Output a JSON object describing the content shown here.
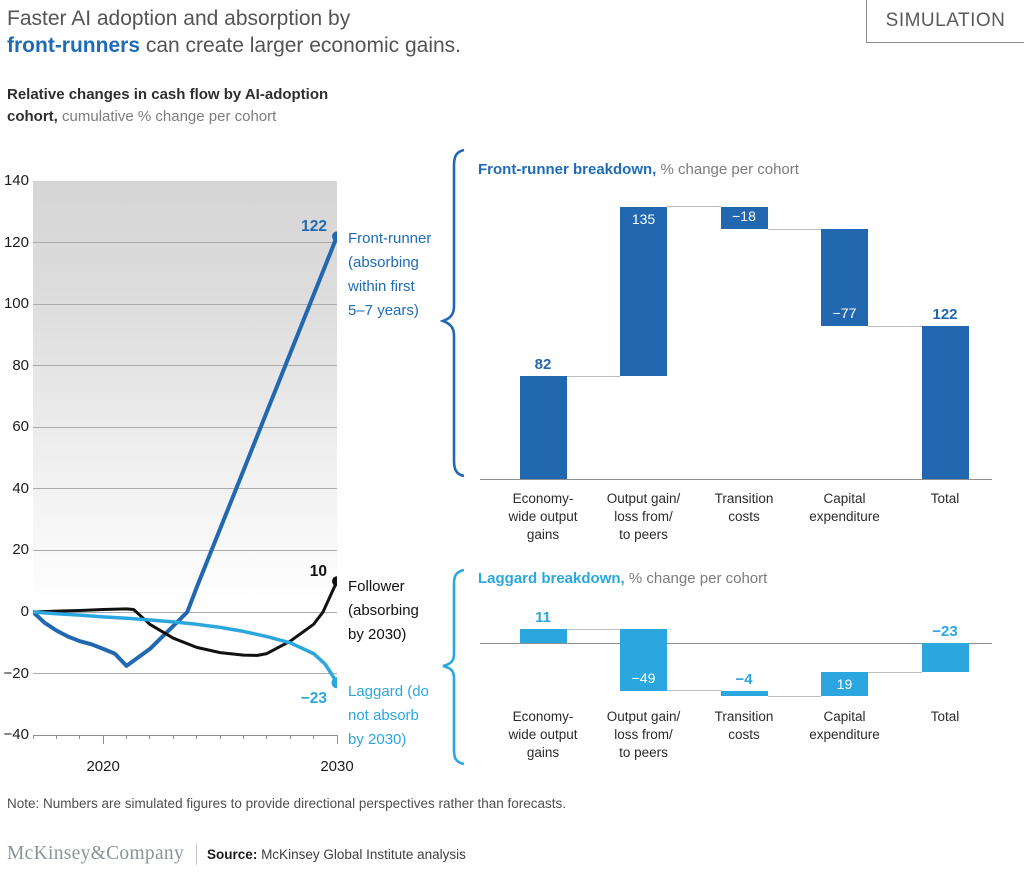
{
  "header": {
    "title_line1": "Faster AI adoption and absorption by",
    "title_highlight": "front-runners",
    "title_rest": " can create larger economic gains.",
    "badge": "SIMULATION"
  },
  "subtitle": {
    "bold": "Relative changes in cash flow by AI-adoption cohort,",
    "rest": " cumulative % change per cohort"
  },
  "colors": {
    "dark_blue": "#2268B1",
    "light_blue": "#2CA6DF",
    "black": "#111111",
    "accent_text_blue": "#1E6BB8",
    "gray_text": "#545454"
  },
  "chart_data": [
    {
      "type": "line",
      "title": "Relative changes in cash flow by AI-adoption cohort, cumulative % change per cohort",
      "x_range": [
        2017,
        2030
      ],
      "ylim": [
        -40,
        140
      ],
      "grid": true,
      "x_ticks": [
        {
          "value": 2020,
          "label": "2020"
        },
        {
          "value": 2030,
          "label": "2030"
        }
      ],
      "y_ticks": [
        {
          "value": 140,
          "label": "140"
        },
        {
          "value": 120,
          "label": "120"
        },
        {
          "value": 100,
          "label": "100"
        },
        {
          "value": 80,
          "label": "80"
        },
        {
          "value": 60,
          "label": "60"
        },
        {
          "value": 40,
          "label": "40"
        },
        {
          "value": 20,
          "label": "20"
        },
        {
          "value": 0,
          "label": "0"
        },
        {
          "value": -20,
          "label": "−20"
        },
        {
          "value": -40,
          "label": "−40"
        }
      ],
      "series": [
        {
          "name": "front-runner",
          "label": "Front-runner\n(absorbing\nwithin first\n5–7 years)",
          "end_value": 122,
          "end_value_label": "122",
          "color": "#2268B1",
          "points": [
            [
              2017,
              0
            ],
            [
              2017.5,
              -3.5
            ],
            [
              2018,
              -6
            ],
            [
              2018.5,
              -8
            ],
            [
              2019,
              -9.5
            ],
            [
              2019.5,
              -10.5
            ],
            [
              2020,
              -12
            ],
            [
              2020.5,
              -13.5
            ],
            [
              2021,
              -17.5
            ],
            [
              2022,
              -12
            ],
            [
              2023,
              -4.5
            ],
            [
              2023.6,
              0
            ],
            [
              2024,
              8
            ],
            [
              2025,
              27
            ],
            [
              2026,
              46
            ],
            [
              2027,
              65
            ],
            [
              2028,
              84
            ],
            [
              2029,
              103
            ],
            [
              2030,
              122
            ]
          ]
        },
        {
          "name": "follower",
          "label": "Follower\n(absorbing\nby 2030)",
          "end_value": 10,
          "end_value_label": "10",
          "color": "#111111",
          "points": [
            [
              2017,
              0
            ],
            [
              2018,
              0.3
            ],
            [
              2019,
              0.5
            ],
            [
              2020,
              0.8
            ],
            [
              2021,
              1
            ],
            [
              2021.3,
              0.8
            ],
            [
              2022,
              -4
            ],
            [
              2023,
              -8.5
            ],
            [
              2024,
              -11.5
            ],
            [
              2025,
              -13.2
            ],
            [
              2026,
              -14
            ],
            [
              2026.6,
              -14.1
            ],
            [
              2027,
              -13.5
            ],
            [
              2028,
              -9.5
            ],
            [
              2029,
              -4
            ],
            [
              2029.4,
              0
            ],
            [
              2030,
              10
            ]
          ]
        },
        {
          "name": "laggard",
          "label": "Laggard (do\nnot absorb\nby 2030)",
          "end_value": -23,
          "end_value_label": "−23",
          "color": "#2CA6DF",
          "points": [
            [
              2017,
              0
            ],
            [
              2018,
              -0.6
            ],
            [
              2019,
              -1
            ],
            [
              2020,
              -1.6
            ],
            [
              2021,
              -2
            ],
            [
              2022,
              -2.6
            ],
            [
              2023,
              -3.2
            ],
            [
              2024,
              -4
            ],
            [
              2025,
              -5
            ],
            [
              2026,
              -6.3
            ],
            [
              2027,
              -8
            ],
            [
              2028,
              -10
            ],
            [
              2029,
              -13.5
            ],
            [
              2029.5,
              -17
            ],
            [
              2030,
              -23
            ]
          ]
        }
      ]
    },
    {
      "type": "bar",
      "variant": "waterfall",
      "title_bold": "Front-runner breakdown,",
      "title_rest": " % change per cohort",
      "color": "#2268B1",
      "categories": [
        "Economy-\nwide output\ngains",
        "Output gain/\nloss from/\nto peers",
        "Transition\ncosts",
        "Capital\nexpenditure",
        "Total"
      ],
      "values": [
        82,
        135,
        -18,
        -77,
        122
      ],
      "labels": [
        "82",
        "135",
        "−18",
        "−77",
        "122"
      ],
      "label_style": [
        "above-accent",
        "inside",
        "inside",
        "inside",
        "above-accent"
      ],
      "baseline": 0
    },
    {
      "type": "bar",
      "variant": "waterfall",
      "title_bold": "Laggard breakdown,",
      "title_rest": " % change per cohort",
      "color": "#2CA6DF",
      "categories": [
        "Economy-\nwide output\ngains",
        "Output gain/\nloss from/\nto peers",
        "Transition\ncosts",
        "Capital\nexpenditure",
        "Total"
      ],
      "values": [
        11,
        -49,
        -4,
        19,
        -23
      ],
      "labels": [
        "11",
        "−49",
        "−4",
        "19",
        "−23"
      ],
      "label_style": [
        "above-accent",
        "inside",
        "above-accent",
        "inside",
        "above-accent"
      ],
      "baseline": 0
    }
  ],
  "note": "Note: Numbers are simulated figures to provide directional perspectives rather than forecasts.",
  "footer": {
    "logo": "McKinsey&Company",
    "source_label": "Source:",
    "source_text": " McKinsey Global Institute analysis"
  }
}
